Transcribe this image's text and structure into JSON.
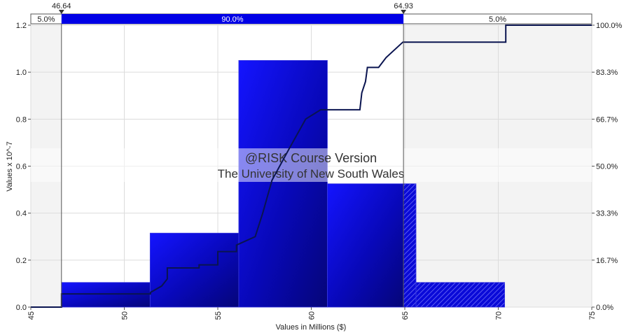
{
  "chart_data": {
    "type": "bar",
    "title": "",
    "xlabel": "Values in Millions ($)",
    "ylabel": "Values x 10^-7",
    "xlim": [
      45,
      75
    ],
    "ylim": [
      0,
      1.2
    ],
    "x_ticks": [
      "45",
      "50",
      "55",
      "60",
      "65",
      "70",
      "75"
    ],
    "y_ticks": [
      "0.0",
      "0.2",
      "0.4",
      "0.6",
      "0.8",
      "1.0",
      "1.2"
    ],
    "y2_ticks": [
      "0.0%",
      "16.7%",
      "33.3%",
      "50.0%",
      "66.7%",
      "83.3%",
      "100.0%"
    ],
    "grid": true,
    "bars": [
      {
        "x0": 46.64,
        "x1": 51.38,
        "value": 0.105
      },
      {
        "x0": 51.38,
        "x1": 56.12,
        "value": 0.315
      },
      {
        "x0": 56.12,
        "x1": 60.86,
        "value": 1.05
      },
      {
        "x0": 60.86,
        "x1": 65.6,
        "value": 0.525
      },
      {
        "x0": 65.6,
        "x1": 70.34,
        "value": 0.105
      }
    ],
    "cumulative": {
      "name": "",
      "x": [
        45.0,
        46.64,
        46.64,
        51.4,
        51.4,
        52.0,
        52.3,
        52.3,
        54.0,
        54.0,
        55.0,
        55.0,
        56.0,
        56.0,
        57.0,
        57.4,
        57.9,
        58.8,
        59.7,
        60.5,
        60.9,
        62.6,
        62.7,
        62.9,
        63.0,
        63.6,
        64.0,
        64.9,
        65.0,
        70.4,
        70.4,
        75.0
      ],
      "y": [
        0.0,
        0.0,
        4.7,
        4.7,
        5.2,
        7.5,
        10.0,
        13.9,
        13.9,
        15.0,
        15.0,
        19.7,
        19.7,
        22.0,
        25.0,
        33.3,
        45.0,
        56.0,
        66.7,
        70.0,
        70.0,
        70.0,
        76.0,
        80.0,
        85.0,
        85.0,
        88.5,
        94.0,
        94.0,
        94.0,
        100.0,
        100.0
      ]
    },
    "delimiters": [
      {
        "value": "46.64",
        "x": 46.64
      },
      {
        "value": "64.93",
        "x": 64.93
      }
    ],
    "percent_bar": {
      "left": "5.0%",
      "middle": "90.0%",
      "right": "5.0%"
    },
    "watermark": {
      "line1": "@RISK Course Version",
      "line2": "The University of New South Wales"
    },
    "colors": {
      "bar": "#0a0ad8",
      "bar_dark": "#060670",
      "cumulative": "#0a1450",
      "highlight": "#0000e6"
    }
  }
}
